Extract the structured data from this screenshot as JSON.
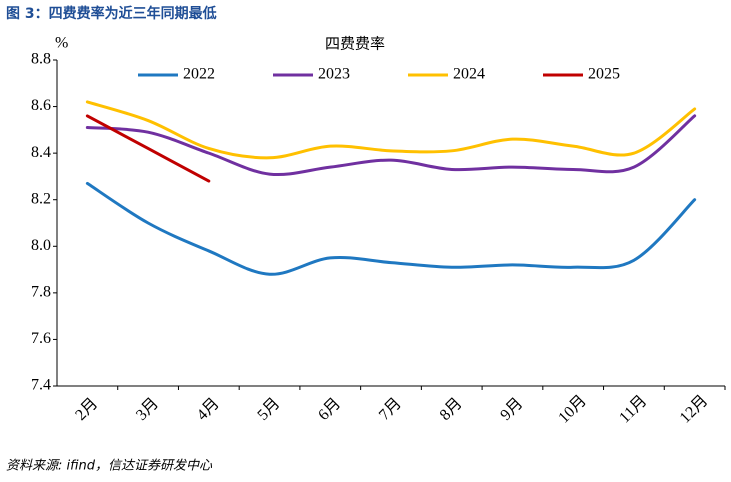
{
  "figure_title": "图 3：四费费率为近三年同期最低",
  "source": "资料来源: ifind，信达证券研发中心",
  "chart_data": {
    "type": "line",
    "title": "四费费率",
    "y_unit": "%",
    "categories": [
      "2月",
      "3月",
      "4月",
      "5月",
      "6月",
      "7月",
      "8月",
      "9月",
      "10月",
      "11月",
      "12月"
    ],
    "series": [
      {
        "name": "2022",
        "color": "#1f78c1",
        "values": [
          8.27,
          8.1,
          7.98,
          7.88,
          7.95,
          7.93,
          7.91,
          7.92,
          7.91,
          7.94,
          8.2
        ]
      },
      {
        "name": "2023",
        "color": "#7030a0",
        "values": [
          8.51,
          8.49,
          8.4,
          8.31,
          8.34,
          8.37,
          8.33,
          8.34,
          8.33,
          8.34,
          8.56
        ]
      },
      {
        "name": "2024",
        "color": "#ffc000",
        "values": [
          8.62,
          8.54,
          8.42,
          8.38,
          8.43,
          8.41,
          8.41,
          8.46,
          8.43,
          8.4,
          8.59
        ]
      },
      {
        "name": "2025",
        "color": "#c00000",
        "values": [
          8.56,
          8.42,
          8.28,
          null,
          null,
          null,
          null,
          null,
          null,
          null,
          null
        ]
      }
    ],
    "ylim": [
      7.4,
      8.8
    ],
    "yticks": [
      7.4,
      7.6,
      7.8,
      {
        "value": 8,
        "label": "8.0"
      },
      8.2,
      8.4,
      8.6,
      8.8
    ],
    "grid": false,
    "legend": "top",
    "smooth": true
  }
}
